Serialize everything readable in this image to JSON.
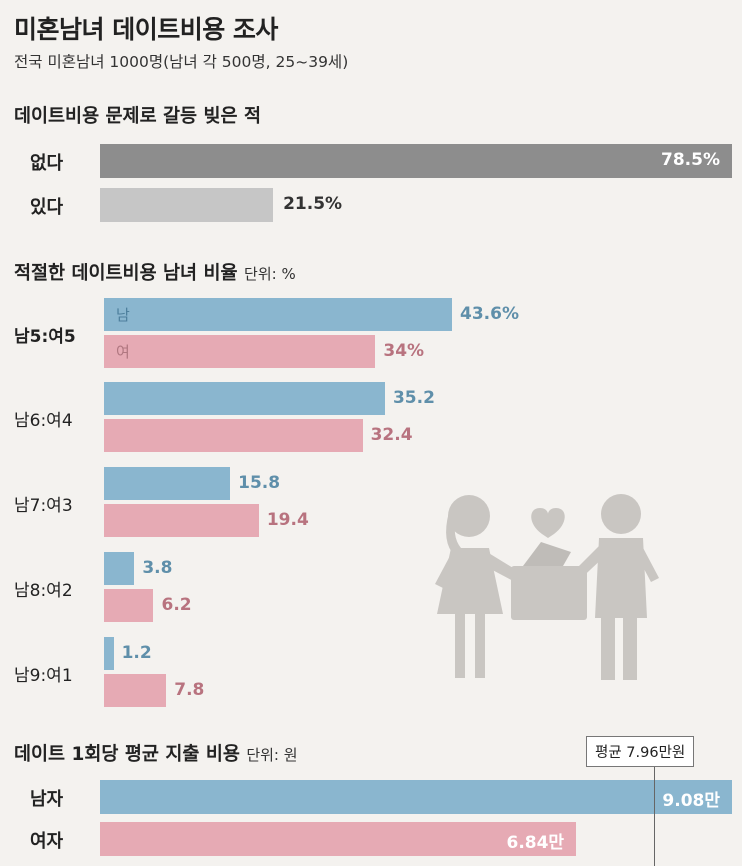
{
  "title": "미혼남녀 데이트비용 조사",
  "subtitle": "전국 미혼남녀 1000명(남녀 각 500명, 25~39세)",
  "colors": {
    "male": "#8ab6cf",
    "female": "#e6aab4",
    "gray_dark": "#8d8d8d",
    "gray_light": "#c6c6c6",
    "male_text": "#5f8faa",
    "female_text": "#b8737f"
  },
  "chart_data": [
    {
      "type": "bar",
      "title": "데이트비용 문제로 갈등 빚은 적",
      "categories": [
        "없다",
        "있다"
      ],
      "values": [
        78.5,
        21.5
      ],
      "value_labels": [
        "78.5%",
        "21.5%"
      ],
      "unit": "%",
      "xlim": [
        0,
        78.5
      ]
    },
    {
      "type": "bar",
      "title": "적절한 데이트비용 남녀 비율",
      "unit_label": "단위: %",
      "categories": [
        "남5:여5",
        "남6:여4",
        "남7:여3",
        "남8:여2",
        "남9:여1"
      ],
      "series": [
        {
          "name": "남",
          "values": [
            43.6,
            35.2,
            15.8,
            3.8,
            1.2
          ],
          "value_labels": [
            "43.6%",
            "35.2",
            "15.8",
            "3.8",
            "1.2"
          ]
        },
        {
          "name": "여",
          "values": [
            34,
            32.4,
            19.4,
            6.2,
            7.8
          ],
          "value_labels": [
            "34%",
            "32.4",
            "19.4",
            "6.2",
            "7.8"
          ]
        }
      ],
      "xlim": [
        0,
        43.6
      ]
    },
    {
      "type": "bar",
      "title": "데이트 1회당 평균 지출 비용",
      "unit_label": "단위: 원",
      "categories": [
        "남자",
        "여자"
      ],
      "values": [
        9.08,
        6.84
      ],
      "value_labels": [
        "9.08만",
        "6.84만"
      ],
      "average": 7.96,
      "average_label": "평균 7.96만원",
      "xlim": [
        0,
        9.08
      ]
    }
  ]
}
